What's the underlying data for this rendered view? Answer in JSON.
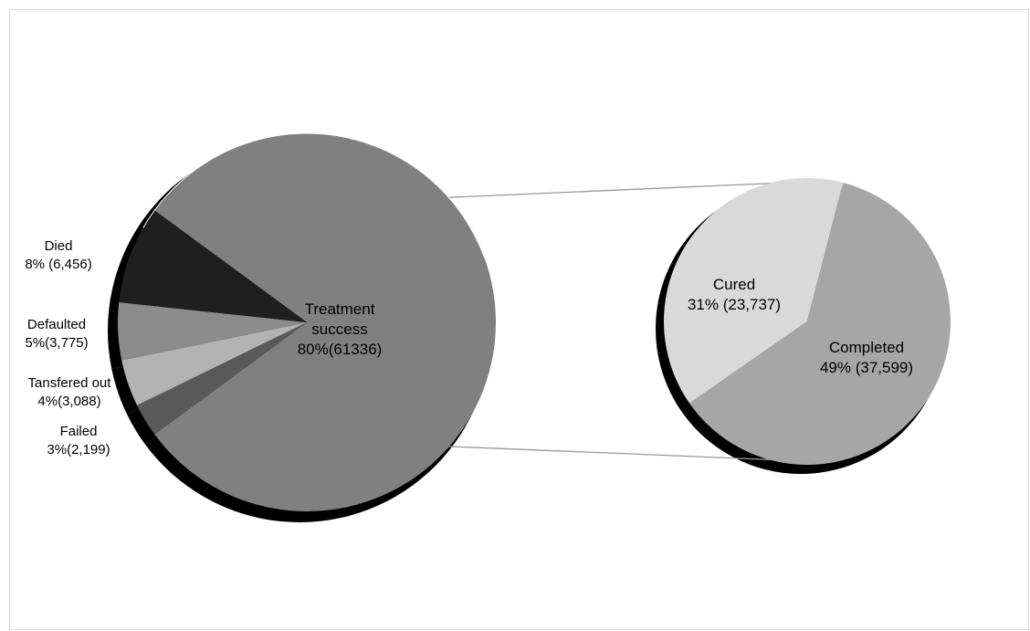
{
  "chart_data": {
    "type": "pie",
    "subtype": "pie-of-pie",
    "colors": {
      "treatment_success": "#808080",
      "died": "#1f1f1f",
      "defaulted": "#8c8c8c",
      "transferred_out": "#b3b3b3",
      "failed": "#595959",
      "cured": "#d9d9d9",
      "completed": "#a6a6a6",
      "shadow": "#000000",
      "connector": "#999999"
    },
    "main_pie": {
      "slices": [
        {
          "key": "treatment_success",
          "name": "Treatment success",
          "percent": 80,
          "count": 61336,
          "label_lines": [
            "Treatment",
            "success",
            "80%(61336)"
          ]
        },
        {
          "key": "failed",
          "name": "Failed",
          "percent": 3,
          "count": 2199,
          "label_lines": [
            "Failed",
            "3%(2,199)"
          ]
        },
        {
          "key": "transferred_out",
          "name": "Tansfered out",
          "percent": 4,
          "count": 3088,
          "label_lines": [
            "Tansfered out",
            "4%(3,088)"
          ]
        },
        {
          "key": "defaulted",
          "name": "Defaulted",
          "percent": 5,
          "count": 3775,
          "label_lines": [
            "Defaulted",
            "5%(3,775)"
          ]
        },
        {
          "key": "died",
          "name": "Died",
          "percent": 8,
          "count": 6456,
          "label_lines": [
            "Died",
            "8% (6,456)"
          ]
        }
      ]
    },
    "secondary_pie": {
      "parent": "treatment_success",
      "slices": [
        {
          "key": "completed",
          "name": "Completed",
          "percent": 49,
          "count": 37599,
          "label_lines": [
            "Completed",
            "49% (37,599)"
          ]
        },
        {
          "key": "cured",
          "name": "Cured",
          "percent": 31,
          "count": 23737,
          "label_lines": [
            "Cured",
            "31% (23,737)"
          ]
        }
      ]
    }
  }
}
